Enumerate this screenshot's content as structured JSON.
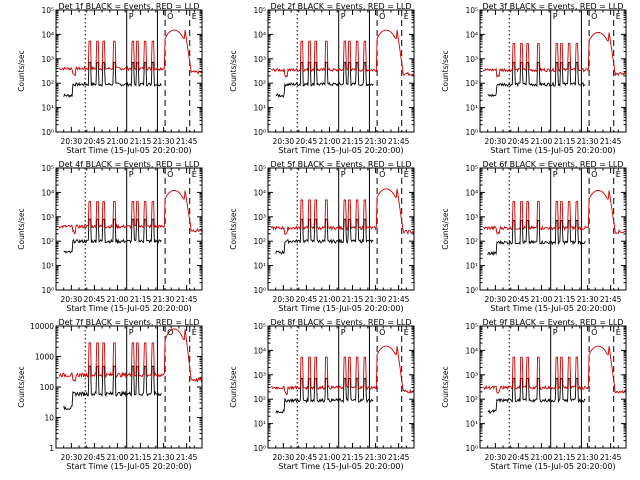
{
  "page": {
    "background": "#ffffff"
  },
  "colors": {
    "events": "#000000",
    "lld": "#cc0000",
    "axes": "#000000"
  },
  "marker_labels": [
    "P",
    "O",
    "E"
  ],
  "chart_data": [
    {
      "type": "line",
      "title": "Det 1f BLACK = Events, RED = LLD",
      "xlabel": "Start Time (15-Jul-05 20:20:00)",
      "ylabel": "Counts/sec",
      "yscale": "log",
      "ylim": [
        1,
        100000
      ],
      "xlim": [
        "20:20",
        "21:55"
      ],
      "x_ticks": [
        "20:30",
        "20:45",
        "21:00",
        "21:15",
        "21:30",
        "21:45"
      ],
      "y_ticks": [
        "10⁰",
        "10¹",
        "10²",
        "10³",
        "10⁴",
        "10⁵"
      ],
      "events_base": 90,
      "lld_base": 400,
      "lld_peak": 15000,
      "grid": false,
      "legend": "none",
      "series": [
        {
          "name": "Events",
          "color": "#000000"
        },
        {
          "name": "LLD",
          "color": "#cc0000"
        }
      ]
    },
    {
      "type": "line",
      "title": "Det 2f BLACK = Events, RED = LLD",
      "xlabel": "Start Time (15-Jul-05 20:20:00)",
      "ylabel": "Counts/sec",
      "yscale": "log",
      "ylim": [
        1,
        100000
      ],
      "xlim": [
        "20:20",
        "21:55"
      ],
      "x_ticks": [
        "20:30",
        "20:45",
        "21:00",
        "21:15",
        "21:30",
        "21:45"
      ],
      "y_ticks": [
        "10⁰",
        "10¹",
        "10²",
        "10³",
        "10⁴",
        "10⁵"
      ],
      "events_base": 90,
      "lld_base": 350,
      "lld_peak": 15000,
      "grid": false,
      "legend": "none",
      "series": [
        {
          "name": "Events",
          "color": "#000000"
        },
        {
          "name": "LLD",
          "color": "#cc0000"
        }
      ]
    },
    {
      "type": "line",
      "title": "Det 3f BLACK = Events, RED = LLD",
      "xlabel": "Start Time (15-Jul-05 20:20:00)",
      "ylabel": "Counts/sec",
      "yscale": "log",
      "ylim": [
        1,
        100000
      ],
      "xlim": [
        "20:20",
        "21:55"
      ],
      "x_ticks": [
        "20:30",
        "20:45",
        "21:00",
        "21:15",
        "21:30",
        "21:45"
      ],
      "y_ticks": [
        "10⁰",
        "10¹",
        "10²",
        "10³",
        "10⁴",
        "10⁵"
      ],
      "events_base": 90,
      "lld_base": 350,
      "lld_peak": 12000,
      "grid": false,
      "legend": "none",
      "series": [
        {
          "name": "Events",
          "color": "#000000"
        },
        {
          "name": "LLD",
          "color": "#cc0000"
        }
      ]
    },
    {
      "type": "line",
      "title": "Det 4f BLACK = Events, RED = LLD",
      "xlabel": "Start Time (15-Jul-05 20:20:00)",
      "ylabel": "Counts/sec",
      "yscale": "log",
      "ylim": [
        1,
        100000
      ],
      "xlim": [
        "20:20",
        "21:55"
      ],
      "x_ticks": [
        "20:30",
        "20:45",
        "21:00",
        "21:15",
        "21:30",
        "21:45"
      ],
      "y_ticks": [
        "10⁰",
        "10¹",
        "10²",
        "10³",
        "10⁴",
        "10⁵"
      ],
      "events_base": 100,
      "lld_base": 400,
      "lld_peak": 12000,
      "grid": false,
      "legend": "none",
      "series": [
        {
          "name": "Events",
          "color": "#000000"
        },
        {
          "name": "LLD",
          "color": "#cc0000"
        }
      ]
    },
    {
      "type": "line",
      "title": "Det 5f BLACK = Events, RED = LLD",
      "xlabel": "Start Time (15-Jul-05 20:20:00)",
      "ylabel": "Counts/sec",
      "yscale": "log",
      "ylim": [
        1,
        100000
      ],
      "xlim": [
        "20:20",
        "21:55"
      ],
      "x_ticks": [
        "20:30",
        "20:45",
        "21:00",
        "21:15",
        "21:30",
        "21:45"
      ],
      "y_ticks": [
        "10⁰",
        "10¹",
        "10²",
        "10³",
        "10⁴",
        "10⁵"
      ],
      "events_base": 100,
      "lld_base": 350,
      "lld_peak": 14000,
      "grid": false,
      "legend": "none",
      "series": [
        {
          "name": "Events",
          "color": "#000000"
        },
        {
          "name": "LLD",
          "color": "#cc0000"
        }
      ]
    },
    {
      "type": "line",
      "title": "Det 6f BLACK = Events, RED = LLD",
      "xlabel": "Start Time (15-Jul-05 20:20:00)",
      "ylabel": "Counts/sec",
      "yscale": "log",
      "ylim": [
        1,
        100000
      ],
      "xlim": [
        "20:20",
        "21:55"
      ],
      "x_ticks": [
        "20:30",
        "20:45",
        "21:00",
        "21:15",
        "21:30",
        "21:45"
      ],
      "y_ticks": [
        "10⁰",
        "10¹",
        "10²",
        "10³",
        "10⁴",
        "10⁵"
      ],
      "events_base": 90,
      "lld_base": 350,
      "lld_peak": 12000,
      "grid": false,
      "legend": "none",
      "series": [
        {
          "name": "Events",
          "color": "#000000"
        },
        {
          "name": "LLD",
          "color": "#cc0000"
        }
      ]
    },
    {
      "type": "line",
      "title": "Det 7f BLACK = Events, RED = LLD",
      "xlabel": "Start Time (15-Jul-05 20:20:00)",
      "ylabel": "Counts/sec",
      "yscale": "log",
      "ylim": [
        1,
        10000
      ],
      "xlim": [
        "20:20",
        "21:55"
      ],
      "x_ticks": [
        "20:30",
        "20:45",
        "21:00",
        "21:15",
        "21:30",
        "21:45"
      ],
      "y_ticks": [
        "1",
        "10",
        "100",
        "1000",
        "10000"
      ],
      "events_base": 60,
      "lld_base": 250,
      "lld_peak": 8000,
      "grid": false,
      "legend": "none",
      "series": [
        {
          "name": "Events",
          "color": "#000000"
        },
        {
          "name": "LLD",
          "color": "#cc0000"
        }
      ]
    },
    {
      "type": "line",
      "title": "Det 8f BLACK = Events, RED = LLD",
      "xlabel": "Start Time (15-Jul-05 20:20:00)",
      "ylabel": "Counts/sec",
      "yscale": "log",
      "ylim": [
        1,
        100000
      ],
      "xlim": [
        "20:20",
        "21:55"
      ],
      "x_ticks": [
        "20:30",
        "20:45",
        "21:00",
        "21:15",
        "21:30",
        "21:45"
      ],
      "y_ticks": [
        "10⁰",
        "10¹",
        "10²",
        "10³",
        "10⁴",
        "10⁵"
      ],
      "events_base": 90,
      "lld_base": 300,
      "lld_peak": 15000,
      "grid": false,
      "legend": "none",
      "series": [
        {
          "name": "Events",
          "color": "#000000"
        },
        {
          "name": "LLD",
          "color": "#cc0000"
        }
      ]
    },
    {
      "type": "line",
      "title": "Det 9f BLACK = Events, RED = LLD",
      "xlabel": "Start Time (15-Jul-05 20:20:00)",
      "ylabel": "Counts/sec",
      "yscale": "log",
      "ylim": [
        1,
        100000
      ],
      "xlim": [
        "20:20",
        "21:55"
      ],
      "x_ticks": [
        "20:30",
        "20:45",
        "21:00",
        "21:15",
        "21:30",
        "21:45"
      ],
      "y_ticks": [
        "10⁰",
        "10¹",
        "10²",
        "10³",
        "10⁴",
        "10⁵"
      ],
      "events_base": 90,
      "lld_base": 300,
      "lld_peak": 15000,
      "grid": false,
      "legend": "none",
      "series": [
        {
          "name": "Events",
          "color": "#000000"
        },
        {
          "name": "LLD",
          "color": "#cc0000"
        }
      ]
    }
  ]
}
